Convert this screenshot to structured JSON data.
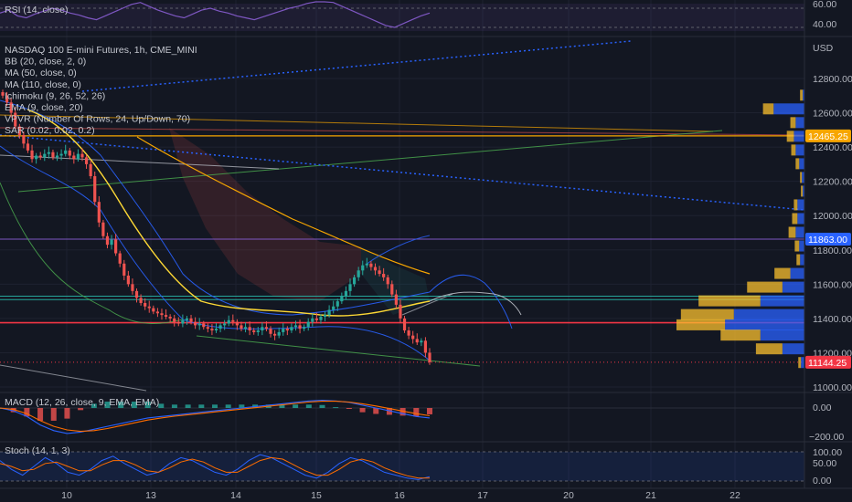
{
  "colors": {
    "bg": "#131722",
    "grid": "#1e2230",
    "up": "#26a69a",
    "down": "#ef5350",
    "rsi": "#7e57c2",
    "macd": "#2962ff",
    "signal": "#ff6d00",
    "stoch_k": "#2962ff",
    "stoch_d": "#ff6d00",
    "price_tag_current": "#f23645",
    "price_tag_orange": "#f7a600",
    "price_tag_blue": "#2962ff"
  },
  "rsi_panel": {
    "label": "RSI (14, close)",
    "ticks": [
      "60.00",
      "40.00"
    ]
  },
  "main_panel": {
    "indicators": [
      "NASDAQ 100 E-mini Futures, 1h, CME_MINI",
      "BB (20, close, 2, 0)",
      "MA (50, close, 0)",
      "MA (110, close, 0)",
      "Ichimoku (9, 26, 52, 26)",
      "EMA (9, close, 20)",
      "VPVR (Number Of Rows, 24, Up/Down, 70)",
      "SAR (0.02, 0.02, 0.2)"
    ],
    "currency": "USD",
    "price_ticks": [
      "12800.00",
      "12600.00",
      "12400.00",
      "12200.00",
      "12000.00",
      "11800.00",
      "11600.00",
      "11400.00",
      "11200.00",
      "11000.00"
    ],
    "price_tags": [
      {
        "name": "orange-level-tag",
        "text": "12465.25",
        "value": 12465.25,
        "color": "#f7a600"
      },
      {
        "name": "blue-level-tag",
        "text": "11863.00",
        "value": 11863,
        "color": "#2962ff"
      },
      {
        "name": "current-price-tag",
        "text": "11144.25",
        "value": 11144.25,
        "color": "#f23645"
      }
    ]
  },
  "macd_panel": {
    "label": "MACD (12, 26, close, 9, EMA, EMA)",
    "ticks": [
      "0.00",
      "−200.00"
    ]
  },
  "stoch_panel": {
    "label": "Stoch (14, 1, 3)",
    "ticks": [
      "100.00",
      "50.00",
      "0.00"
    ]
  },
  "time_axis": {
    "labels": [
      "10",
      "13",
      "14",
      "15",
      "16",
      "17",
      "20",
      "21",
      "22"
    ]
  },
  "chart_data": {
    "type": "candlestick",
    "title": "NASDAQ 100 E-mini Futures, 1h, CME_MINI",
    "y_unit": "USD",
    "ylim": [
      10900,
      12950
    ],
    "x_categories": [
      "10",
      "13",
      "14",
      "15",
      "16",
      "17",
      "20",
      "21",
      "22"
    ],
    "close_series": [
      12700,
      12660,
      12600,
      12520,
      12470,
      12420,
      12380,
      12330,
      12350,
      12340,
      12360,
      12370,
      12340,
      12350,
      12360,
      12380,
      12350,
      12330,
      12360,
      12340,
      12300,
      12230,
      12080,
      11960,
      11880,
      11830,
      11860,
      11780,
      11720,
      11650,
      11600,
      11560,
      11520,
      11490,
      11470,
      11460,
      11440,
      11430,
      11420,
      11410,
      11400,
      11380,
      11370,
      11390,
      11400,
      11380,
      11360,
      11370,
      11350,
      11340,
      11330,
      11340,
      11360,
      11370,
      11390,
      11380,
      11360,
      11340,
      11350,
      11330,
      11320,
      11330,
      11350,
      11340,
      11310,
      11300,
      11320,
      11340,
      11330,
      11350,
      11360,
      11340,
      11350,
      11380,
      11400,
      11390,
      11410,
      11420,
      11450,
      11470,
      11500,
      11530,
      11560,
      11600,
      11640,
      11680,
      11710,
      11720,
      11700,
      11680,
      11660,
      11640,
      11600,
      11540,
      11480,
      11400,
      11330,
      11300,
      11280,
      11260,
      11270,
      11200,
      11144
    ],
    "horizontal_levels": [
      {
        "name": "orange-level",
        "value": 12465.25
      },
      {
        "name": "blue-level",
        "value": 11863
      },
      {
        "name": "red-level",
        "value": 11375
      },
      {
        "name": "teal-level-1",
        "value": 11530
      },
      {
        "name": "teal-level-2",
        "value": 11510
      }
    ],
    "volume_profile_rows": [
      {
        "price": 12700,
        "up": 3,
        "down": 2
      },
      {
        "price": 12620,
        "up": 12,
        "down": 35
      },
      {
        "price": 12540,
        "up": 6,
        "down": 10
      },
      {
        "price": 12460,
        "up": 8,
        "down": 12
      },
      {
        "price": 12380,
        "up": 5,
        "down": 10
      },
      {
        "price": 12300,
        "up": 4,
        "down": 6
      },
      {
        "price": 12220,
        "up": 2,
        "down": 3
      },
      {
        "price": 12140,
        "up": 2,
        "down": 2
      },
      {
        "price": 12060,
        "up": 4,
        "down": 8
      },
      {
        "price": 11980,
        "up": 6,
        "down": 8
      },
      {
        "price": 11900,
        "up": 8,
        "down": 10
      },
      {
        "price": 11820,
        "up": 5,
        "down": 6
      },
      {
        "price": 11740,
        "up": 4,
        "down": 5
      },
      {
        "price": 11660,
        "up": 18,
        "down": 16
      },
      {
        "price": 11580,
        "up": 40,
        "down": 25
      },
      {
        "price": 11500,
        "up": 70,
        "down": 50
      },
      {
        "price": 11420,
        "up": 60,
        "down": 80
      },
      {
        "price": 11360,
        "up": 55,
        "down": 90
      },
      {
        "price": 11300,
        "up": 45,
        "down": 50
      },
      {
        "price": 11220,
        "up": 30,
        "down": 25
      },
      {
        "price": 11140,
        "up": 3,
        "down": 4
      }
    ],
    "rsi_values": [
      55,
      58,
      52,
      50,
      54,
      57,
      60,
      58,
      55,
      53,
      50,
      48,
      52,
      56,
      60,
      64,
      66,
      62,
      58,
      55,
      52,
      50,
      54,
      58,
      60,
      57,
      55,
      52,
      50,
      48,
      51,
      54,
      57,
      60,
      62,
      65,
      68,
      70,
      66,
      62,
      58,
      54,
      50,
      46,
      42,
      40,
      44,
      48,
      52,
      55
    ],
    "macd_line": [
      0,
      -20,
      -60,
      -120,
      -160,
      -180,
      -170,
      -150,
      -130,
      -110,
      -90,
      -70,
      -60,
      -50,
      -40,
      -30,
      -20,
      -10,
      0,
      10,
      20,
      30,
      40,
      50,
      55,
      50,
      40,
      20,
      0,
      -20,
      -40,
      -60,
      -70
    ],
    "signal_line": [
      0,
      -10,
      -40,
      -90,
      -130,
      -155,
      -165,
      -160,
      -145,
      -125,
      -105,
      -85,
      -70,
      -58,
      -48,
      -38,
      -28,
      -18,
      -8,
      2,
      12,
      22,
      32,
      42,
      48,
      48,
      42,
      30,
      14,
      -4,
      -22,
      -40,
      -55
    ],
    "stoch_k": [
      70,
      40,
      20,
      50,
      80,
      60,
      30,
      20,
      40,
      70,
      85,
      60,
      40,
      20,
      30,
      60,
      80,
      70,
      50,
      30,
      20,
      40,
      70,
      90,
      80,
      60,
      40,
      20,
      10,
      30,
      60,
      80,
      70,
      50,
      30,
      20,
      10,
      5,
      15
    ],
    "stoch_d": [
      60,
      50,
      35,
      40,
      60,
      65,
      50,
      35,
      35,
      55,
      70,
      70,
      55,
      35,
      30,
      45,
      65,
      75,
      65,
      45,
      30,
      30,
      50,
      70,
      80,
      75,
      55,
      35,
      20,
      20,
      40,
      65,
      75,
      65,
      45,
      30,
      18,
      10,
      10
    ]
  }
}
